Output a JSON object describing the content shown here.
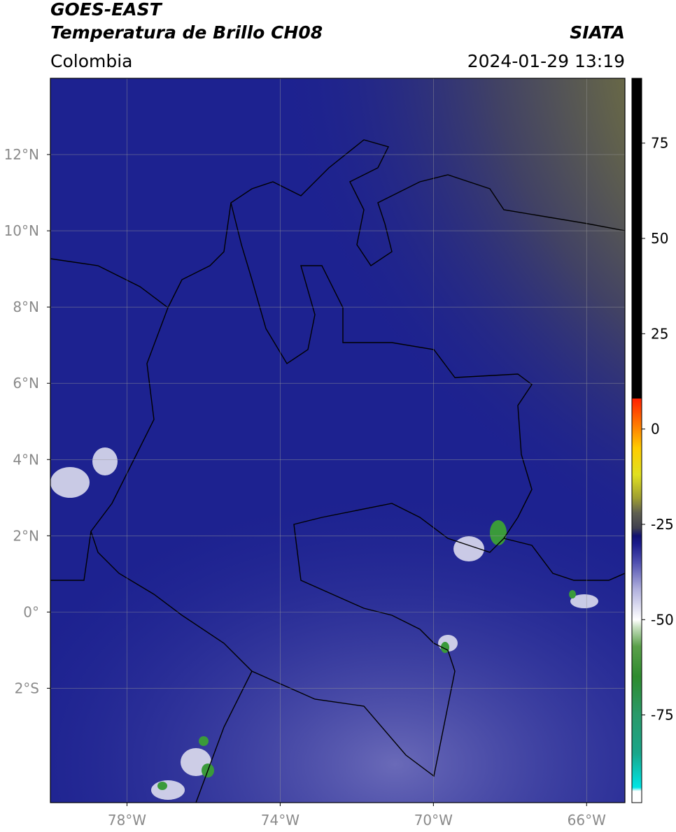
{
  "header": {
    "title": "GOES-EAST",
    "subtitle": "Temperatura de Brillo CH08",
    "source": "SIATA",
    "region": "Colombia",
    "datetime": "2024-01-29 13:19"
  },
  "map": {
    "xlim": [
      -80,
      -65
    ],
    "ylim": [
      -5,
      14
    ],
    "grid": true,
    "xticks": [
      {
        "value": -78,
        "label": "78°W"
      },
      {
        "value": -74,
        "label": "74°W"
      },
      {
        "value": -70,
        "label": "70°W"
      },
      {
        "value": -66,
        "label": "66°W"
      }
    ],
    "yticks": [
      {
        "value": 12,
        "label": "12°N"
      },
      {
        "value": 10,
        "label": "10°N"
      },
      {
        "value": 8,
        "label": "8°N"
      },
      {
        "value": 6,
        "label": "6°N"
      },
      {
        "value": 4,
        "label": "4°N"
      },
      {
        "value": 2,
        "label": "2°N"
      },
      {
        "value": 0,
        "label": "0°"
      },
      {
        "value": -2,
        "label": "2°S"
      }
    ]
  },
  "colorbar": {
    "lim": [
      -98,
      92
    ],
    "ticks": [
      75,
      50,
      25,
      0,
      -25,
      -50,
      -75
    ],
    "colors": [
      {
        "value": -98,
        "color": "#ffffff"
      },
      {
        "value": -95,
        "color": "#ffffff"
      },
      {
        "value": -94,
        "color": "#00e5e5"
      },
      {
        "value": -85,
        "color": "#1aa68a"
      },
      {
        "value": -75,
        "color": "#2a9a6a"
      },
      {
        "value": -65,
        "color": "#2e8b2e"
      },
      {
        "value": -57,
        "color": "#5aa04a"
      },
      {
        "value": -52,
        "color": "#c8e0c0"
      },
      {
        "value": -50,
        "color": "#ffffff"
      },
      {
        "value": -42,
        "color": "#b0b0dd"
      },
      {
        "value": -35,
        "color": "#5050b0"
      },
      {
        "value": -30,
        "color": "#1a1a8a"
      },
      {
        "value": -28,
        "color": "#101070"
      },
      {
        "value": -26,
        "color": "#404050"
      },
      {
        "value": -22,
        "color": "#606050"
      },
      {
        "value": -18,
        "color": "#a0a030"
      },
      {
        "value": -12,
        "color": "#e0e020"
      },
      {
        "value": -5,
        "color": "#ffcc00"
      },
      {
        "value": 0,
        "color": "#ff8800"
      },
      {
        "value": 8,
        "color": "#ff2000"
      },
      {
        "value": 8,
        "color": "#000000"
      },
      {
        "value": 92,
        "color": "#000000"
      }
    ]
  }
}
